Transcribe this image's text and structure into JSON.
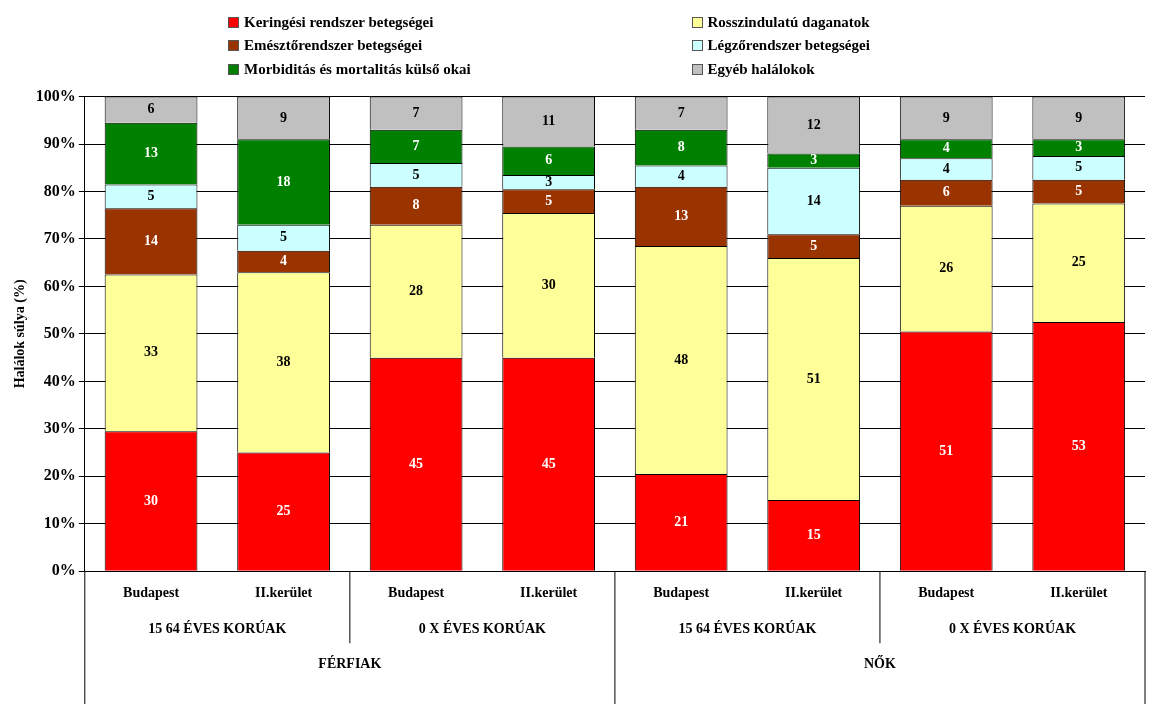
{
  "chart_data": {
    "type": "bar",
    "stacked": true,
    "ylabel": "Halálok súlya (%)",
    "categories": [
      "Budapest",
      "II.kerület",
      "Budapest",
      "II.kerület",
      "Budapest",
      "II.kerület",
      "Budapest",
      "II.kerület"
    ],
    "series": [
      {
        "name": "Keringési rendszer betegségei",
        "color": "#ff0000",
        "values": [
          29.5,
          25,
          45,
          45,
          20.5,
          15,
          50.5,
          52.5
        ],
        "value_labels": [
          "30",
          "25",
          "45",
          "45",
          "21",
          "15",
          "51",
          "53"
        ]
      },
      {
        "name": "Rosszindulatú daganatok",
        "color": "#ffff99",
        "values": [
          33,
          38,
          28,
          30.5,
          48,
          51,
          26.5,
          25
        ],
        "value_labels": [
          "33",
          "38",
          "28",
          "30",
          "48",
          "51",
          "26",
          "25"
        ]
      },
      {
        "name": "Emésztőrendszer betegségei",
        "color": "#993300",
        "values": [
          14,
          4.5,
          8,
          5,
          12.5,
          5,
          5.5,
          5
        ],
        "value_labels": [
          "14",
          "4",
          "8",
          "5",
          "13",
          "5",
          "6",
          "5"
        ]
      },
      {
        "name": "Légzőrendszer betegségei",
        "color": "#ccffff",
        "values": [
          5,
          5.5,
          5,
          3,
          4.5,
          14,
          4.5,
          5
        ],
        "value_labels": [
          "5",
          "5",
          "5",
          "3",
          "4",
          "14",
          "4",
          "5"
        ]
      },
      {
        "name": "Morbiditás és mortalitás külső okai",
        "color": "#008000",
        "values": [
          13,
          18,
          7,
          6,
          7.5,
          3,
          4,
          3.5
        ],
        "value_labels": [
          "13",
          "18",
          "7",
          "6",
          "8",
          "3",
          "4",
          "3"
        ]
      },
      {
        "name": "Egyéb halálokok",
        "color": "#c0c0c0",
        "values": [
          5.5,
          9,
          7,
          10.5,
          7,
          12,
          9,
          9
        ],
        "value_labels": [
          "6",
          "9",
          "7",
          "11",
          "7",
          "12",
          "9",
          "9"
        ]
      }
    ],
    "ylim": [
      0,
      100
    ],
    "yticks": [
      {
        "value": 0,
        "label": "0%"
      },
      {
        "value": 10,
        "label": "10%"
      },
      {
        "value": 20,
        "label": "20%"
      },
      {
        "value": 30,
        "label": "30%"
      },
      {
        "value": 40,
        "label": "40%"
      },
      {
        "value": 50,
        "label": "50%"
      },
      {
        "value": 60,
        "label": "60%"
      },
      {
        "value": 70,
        "label": "70%"
      },
      {
        "value": 80,
        "label": "80%"
      },
      {
        "value": 90,
        "label": "90%"
      },
      {
        "value": 100,
        "label": "100%"
      }
    ],
    "grid": "y",
    "legend": "top",
    "annotations": [
      "15 64 ÉVES KORÚAK",
      "0 X ÉVES KORÚAK",
      "15 64 ÉVES KORÚAK",
      "0 X ÉVES KORÚAK",
      "FÉRFIAK",
      "NŐK"
    ]
  }
}
